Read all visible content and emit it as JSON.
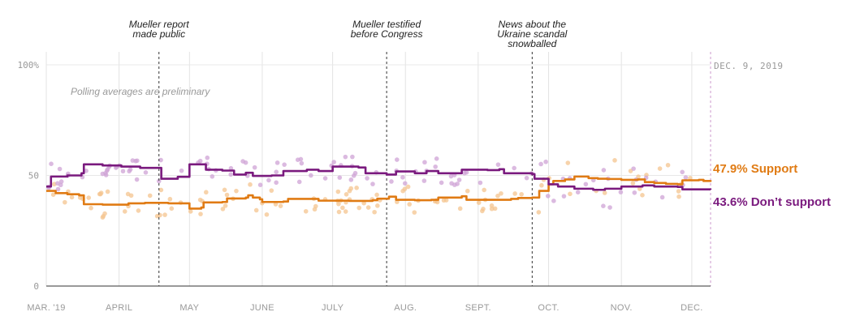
{
  "chart_data": {
    "type": "line",
    "end_date_label": "DEC. 9, 2019",
    "note": "Polling averages are preliminary",
    "y_ticks": [
      "100%",
      "50",
      "0"
    ],
    "ylim": [
      0,
      100
    ],
    "x_ticks": [
      "MAR. '19",
      "APRIL",
      "MAY",
      "JUNE",
      "JULY",
      "AUG.",
      "SEPT.",
      "OCT.",
      "NOV.",
      "DEC."
    ],
    "events": [
      {
        "lines": [
          "Mueller report",
          "made public"
        ],
        "date": "2019-04-18"
      },
      {
        "lines": [
          "Mueller testified",
          "before Congress"
        ],
        "date": "2019-07-24"
      },
      {
        "lines": [
          "News about the",
          "Ukraine scandal",
          "snowballed"
        ],
        "date": "2019-09-24"
      }
    ],
    "series": [
      {
        "name": "Support",
        "end_label": "47.9% Support",
        "color": "#e07b14",
        "dots_color": "#f4c48f",
        "points": [
          [
            "2019-03-01",
            43
          ],
          [
            "2019-03-05",
            42
          ],
          [
            "2019-03-10",
            41.5
          ],
          [
            "2019-03-15",
            41
          ],
          [
            "2019-03-17",
            37
          ],
          [
            "2019-03-25",
            36.8
          ],
          [
            "2019-04-05",
            37.4
          ],
          [
            "2019-04-12",
            37.6
          ],
          [
            "2019-04-18",
            37.6
          ],
          [
            "2019-04-22",
            37.4
          ],
          [
            "2019-04-30",
            37.4
          ],
          [
            "2019-05-01",
            35
          ],
          [
            "2019-05-06",
            35.5
          ],
          [
            "2019-05-07",
            37.8
          ],
          [
            "2019-05-15",
            38
          ],
          [
            "2019-05-17",
            39.6
          ],
          [
            "2019-05-25",
            40
          ],
          [
            "2019-05-26",
            41
          ],
          [
            "2019-05-28",
            40
          ],
          [
            "2019-05-31",
            39.2
          ],
          [
            "2019-06-01",
            38
          ],
          [
            "2019-06-10",
            38.2
          ],
          [
            "2019-06-12",
            39.4
          ],
          [
            "2019-06-20",
            39.4
          ],
          [
            "2019-06-25",
            38.6
          ],
          [
            "2019-07-08",
            38.5
          ],
          [
            "2019-07-18",
            38.8
          ],
          [
            "2019-07-20",
            39.5
          ],
          [
            "2019-07-25",
            40.4
          ],
          [
            "2019-07-28",
            39
          ],
          [
            "2019-08-05",
            38.8
          ],
          [
            "2019-08-12",
            39
          ],
          [
            "2019-08-15",
            40
          ],
          [
            "2019-08-25",
            40.6
          ],
          [
            "2019-08-27",
            39
          ],
          [
            "2019-09-05",
            39
          ],
          [
            "2019-09-15",
            39.4
          ],
          [
            "2019-09-18",
            39.8
          ],
          [
            "2019-09-24",
            40
          ],
          [
            "2019-09-27",
            43
          ],
          [
            "2019-10-01",
            46
          ],
          [
            "2019-10-03",
            47.5
          ],
          [
            "2019-10-08",
            48.2
          ],
          [
            "2019-10-12",
            49.5
          ],
          [
            "2019-10-18",
            48.8
          ],
          [
            "2019-10-22",
            48.5
          ],
          [
            "2019-10-26",
            48.4
          ],
          [
            "2019-11-01",
            48
          ],
          [
            "2019-11-08",
            48.2
          ],
          [
            "2019-11-11",
            47
          ],
          [
            "2019-11-15",
            46.6
          ],
          [
            "2019-11-20",
            46.2
          ],
          [
            "2019-11-25",
            46
          ],
          [
            "2019-11-27",
            47.8
          ],
          [
            "2019-12-04",
            48
          ],
          [
            "2019-12-06",
            47.5
          ],
          [
            "2019-12-09",
            47.9
          ]
        ]
      },
      {
        "name": "Don’t support",
        "end_label": "43.6% Don’t support",
        "color": "#7a1a7e",
        "dots_color": "#cfa3d6",
        "points": [
          [
            "2019-03-01",
            45
          ],
          [
            "2019-03-03",
            49.5
          ],
          [
            "2019-03-10",
            50
          ],
          [
            "2019-03-16",
            51
          ],
          [
            "2019-03-17",
            55
          ],
          [
            "2019-03-25",
            54.5
          ],
          [
            "2019-04-02",
            54
          ],
          [
            "2019-04-10",
            53.4
          ],
          [
            "2019-04-18",
            53.4
          ],
          [
            "2019-04-19",
            48.5
          ],
          [
            "2019-04-26",
            49.4
          ],
          [
            "2019-05-01",
            55
          ],
          [
            "2019-05-06",
            55
          ],
          [
            "2019-05-08",
            52.6
          ],
          [
            "2019-05-15",
            52.2
          ],
          [
            "2019-05-20",
            50.4
          ],
          [
            "2019-05-25",
            51.2
          ],
          [
            "2019-05-28",
            49.8
          ],
          [
            "2019-06-05",
            50
          ],
          [
            "2019-06-10",
            52
          ],
          [
            "2019-06-20",
            52.6
          ],
          [
            "2019-06-25",
            52
          ],
          [
            "2019-07-01",
            54
          ],
          [
            "2019-07-12",
            53.6
          ],
          [
            "2019-07-15",
            51
          ],
          [
            "2019-07-24",
            50.4
          ],
          [
            "2019-07-28",
            51.8
          ],
          [
            "2019-08-05",
            51
          ],
          [
            "2019-08-10",
            52
          ],
          [
            "2019-08-15",
            51
          ],
          [
            "2019-08-25",
            52.6
          ],
          [
            "2019-09-05",
            52.4
          ],
          [
            "2019-09-10",
            52.8
          ],
          [
            "2019-09-12",
            51
          ],
          [
            "2019-09-24",
            50.6
          ],
          [
            "2019-09-25",
            48.5
          ],
          [
            "2019-10-01",
            46
          ],
          [
            "2019-10-05",
            45
          ],
          [
            "2019-10-12",
            44
          ],
          [
            "2019-10-20",
            43.5
          ],
          [
            "2019-10-25",
            44
          ],
          [
            "2019-11-01",
            45
          ],
          [
            "2019-11-10",
            45.5
          ],
          [
            "2019-11-15",
            45
          ],
          [
            "2019-11-25",
            44.8
          ],
          [
            "2019-11-27",
            43.7
          ],
          [
            "2019-12-09",
            43.6
          ]
        ]
      }
    ]
  }
}
